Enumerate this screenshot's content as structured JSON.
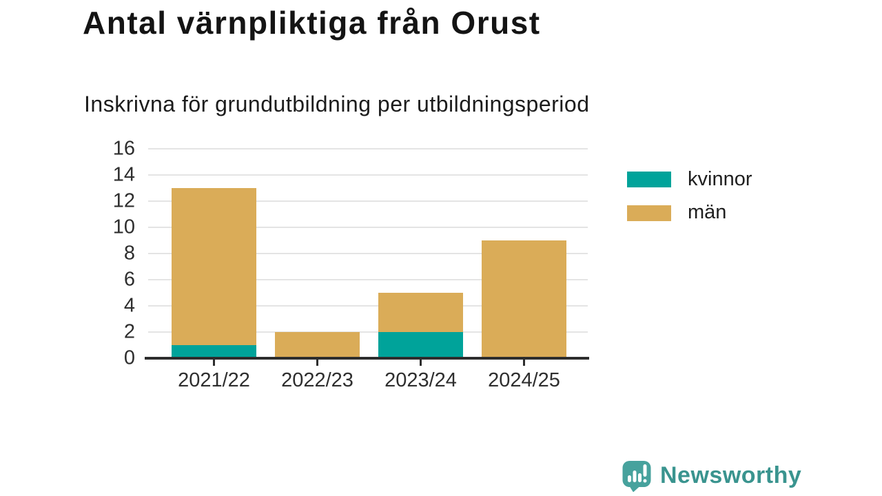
{
  "header": {
    "title": "Antal värnpliktiga från Orust",
    "subtitle": "Inskrivna för grundutbildning per utbildningsperiod"
  },
  "chart_data": {
    "type": "bar",
    "stacked": true,
    "title": "Antal värnpliktiga från Orust",
    "subtitle": "Inskrivna för grundutbildning per utbildningsperiod",
    "categories": [
      "2021/22",
      "2022/23",
      "2023/24",
      "2024/25"
    ],
    "series": [
      {
        "name": "kvinnor",
        "color": "#00A39A",
        "values": [
          1,
          0,
          2,
          0
        ]
      },
      {
        "name": "män",
        "color": "#DAAC58",
        "values": [
          12,
          2,
          3,
          9
        ]
      }
    ],
    "xlabel": "",
    "ylabel": "",
    "ylim": [
      0,
      16
    ],
    "yticks": [
      0,
      2,
      4,
      6,
      8,
      10,
      12,
      14,
      16
    ],
    "grid": true,
    "legend_position": "right"
  },
  "colors": {
    "axis_line": "#2D2D2D",
    "gridline": "#E4E4E4",
    "tick_label": "#2E2E2E",
    "legend_label": "#1F1F1F",
    "brand_text": "#3A948F",
    "brand_icon": "#47A29D",
    "brand_icon_glyph": "#FFFFFF"
  },
  "footer": {
    "brand": "Newsworthy"
  }
}
